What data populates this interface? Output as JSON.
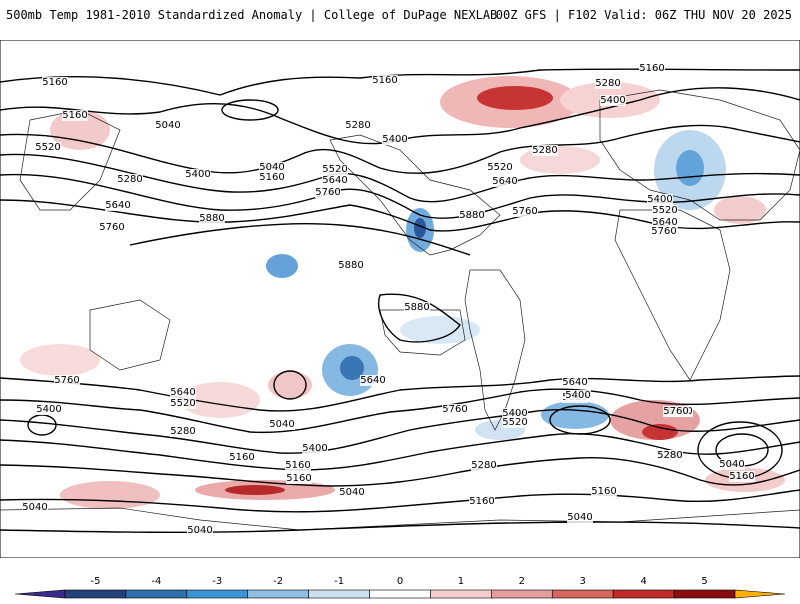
{
  "header": {
    "title_left": "500mb Temp 1981-2010 Standardized Anomaly | College of DuPage NEXLAB",
    "title_right": "00Z GFS | F102 Valid: 06Z THU NOV 20 2025"
  },
  "colors": {
    "frame": "#000000",
    "land_outline": "#222222",
    "contour": "#000000"
  },
  "colorbar": {
    "labels": [
      "-5",
      "-4",
      "-3",
      "-2",
      "-1",
      "0",
      "1",
      "2",
      "3",
      "4",
      "5"
    ],
    "colors": [
      "#3b2b8c",
      "#23417a",
      "#2f6fb0",
      "#3d94d4",
      "#8fbfe4",
      "#cce0f0",
      "#ffffff",
      "#f5cdcd",
      "#e59e9e",
      "#d7645f",
      "#c42a2a",
      "#8c0d0d",
      "#ffb000"
    ]
  },
  "map": {
    "contour_labels": [
      "5160",
      "5160",
      "5040",
      "5520",
      "5280",
      "5400",
      "5040",
      "5160",
      "5640",
      "5760",
      "5880",
      "5160",
      "5280",
      "5400",
      "5520",
      "5640",
      "5760",
      "5280",
      "5400",
      "5520",
      "5640",
      "5880",
      "5760",
      "5160",
      "5280",
      "5400",
      "5520",
      "5640",
      "5760",
      "5880",
      "5880",
      "5760",
      "5640",
      "5520",
      "5400",
      "5280",
      "5040",
      "5160",
      "5640",
      "5760",
      "5400",
      "5520",
      "5640",
      "5400",
      "5520",
      "5760",
      "5280",
      "5040",
      "5160",
      "5160",
      "5040",
      "5040",
      "5160",
      "5040",
      "5160",
      "5280",
      "5760",
      "5400",
      "5040",
      "5160",
      "5280"
    ]
  }
}
